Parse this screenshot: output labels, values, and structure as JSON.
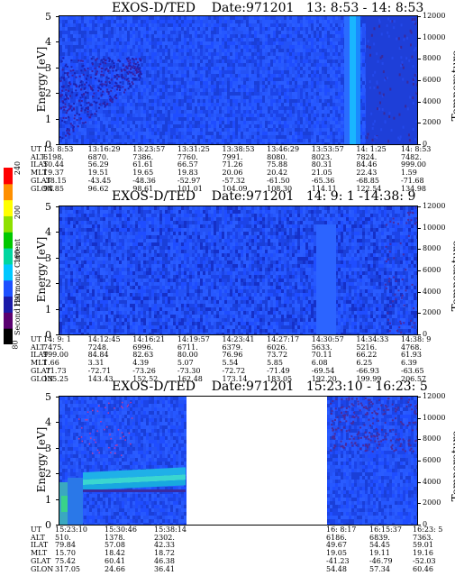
{
  "panels": [
    {
      "title_instrument": "EXOS-D/TED",
      "title_date": "Date:971201",
      "title_time": "13: 8:53 - 14: 8:53",
      "y_label": "Energy [eV]",
      "y2_label": "Temperature [K]",
      "y_ticks": [
        "0",
        "1",
        "2",
        "3",
        "4",
        "5"
      ],
      "y2_ticks": [
        "0",
        "2000",
        "4000",
        "6000",
        "8000",
        "10000",
        "12000"
      ],
      "table_rows": [
        "UT",
        "ALT",
        "ILAT",
        "MLT",
        "GLAT",
        "GLON"
      ],
      "table_cols": [
        [
          "13: 8:53",
          "6198.",
          "50.44",
          "19.37",
          "-38.15",
          "94.85"
        ],
        [
          "13:16:29",
          "6870.",
          "56.29",
          "19.51",
          "-43.45",
          "96.62"
        ],
        [
          "13:23:57",
          "7386.",
          "61.61",
          "19.65",
          "-48.36",
          "98.61"
        ],
        [
          "13:31:25",
          "7760.",
          "66.57",
          "19.83",
          "-52.97",
          "101.01"
        ],
        [
          "13:38:53",
          "7991.",
          "71.26",
          "20.06",
          "-57.32",
          "104.09"
        ],
        [
          "13:46:29",
          "8080.",
          "75.88",
          "20.42",
          "-61.50",
          "108.30"
        ],
        [
          "13:53:57",
          "8023.",
          "80.31",
          "21.05",
          "-65.36",
          "114.11"
        ],
        [
          "14: 1:25",
          "7824.",
          "84.46",
          "22.43",
          "-68.85",
          "122.54"
        ],
        [
          "14: 8:53",
          "7482.",
          "999.00",
          "1.59",
          "-71.68",
          "134.98"
        ]
      ]
    },
    {
      "title_instrument": "EXOS-D/TED",
      "title_date": "Date:971201",
      "title_time": "14: 9: 1 -14:38: 9",
      "y_label": "Energy [eV]",
      "y2_label": "Temperature [K]",
      "y_ticks": [
        "0",
        "1",
        "2",
        "3",
        "4",
        "5"
      ],
      "y2_ticks": [
        "0",
        "2000",
        "4000",
        "6000",
        "8000",
        "10000",
        "12000"
      ],
      "table_rows": [
        "UT",
        "ALT",
        "ILAT",
        "MLT",
        "GLAT",
        "GLON"
      ],
      "table_cols": [
        [
          "14: 9: 1",
          "7475.",
          "999.00",
          "1.66",
          "-71.73",
          "135.25"
        ],
        [
          "14:12:45",
          "7248.",
          "84.84",
          "3.31",
          "-72.71",
          "143.43"
        ],
        [
          "14:16:21",
          "6996.",
          "82.63",
          "4.39",
          "-73.26",
          "152.52"
        ],
        [
          "14:19:57",
          "6711.",
          "80.00",
          "5.07",
          "-73.30",
          "162.48"
        ],
        [
          "14:23:41",
          "6379.",
          "76.96",
          "5.54",
          "-72.72",
          "173.14"
        ],
        [
          "14:27:17",
          "6026.",
          "73.72",
          "5.85",
          "-71.49",
          "183.05"
        ],
        [
          "14:30:57",
          "5633.",
          "70.11",
          "6.08",
          "-69.54",
          "192.20"
        ],
        [
          "14:34:33",
          "5216.",
          "66.22",
          "6.25",
          "-66.93",
          "199.99"
        ],
        [
          "14:38: 9",
          "4768.",
          "61.93",
          "6.39",
          "-63.65",
          "206.57"
        ]
      ]
    },
    {
      "title_instrument": "EXOS-D/TED",
      "title_date": "Date:971201",
      "title_time": "15:23:10 - 16:23: 5",
      "y_label": "Energy [eV]",
      "y2_label": "Temperature [K]",
      "y_ticks": [
        "0",
        "1",
        "2",
        "3",
        "4",
        "5"
      ],
      "y2_ticks": [
        "0",
        "2000",
        "4000",
        "6000",
        "8000",
        "10000",
        "12000"
      ],
      "table_rows": [
        "UT",
        "ALT",
        "ILAT",
        "MLT",
        "GLAT",
        "GLON"
      ],
      "table_cols_left": [
        [
          "15:23:10",
          "510.",
          "79.84",
          "15.70",
          "75.42",
          "317.05"
        ],
        [
          "15:30:46",
          "1378.",
          "57.08",
          "18.42",
          "60.41",
          "24.66"
        ],
        [
          "15:38:14",
          "2302.",
          "42.33",
          "18.72",
          "46.38",
          "36.41"
        ]
      ],
      "table_cols_right": [
        [
          "16: 8:17",
          "6186.",
          "49.67",
          "19.05",
          "-41.23",
          "54.48"
        ],
        [
          "16:15:37",
          "6839.",
          "54.45",
          "19.11",
          "-46.79",
          "57.34"
        ],
        [
          "16:23: 5",
          "7363.",
          "59.01",
          "19.16",
          "-52.03",
          "60.46"
        ]
      ]
    }
  ],
  "colorbar": {
    "label": "Second Harmonic Current",
    "ticks": [
      "80",
      "120",
      "160",
      "200",
      "240"
    ],
    "colors": [
      "#000000",
      "#5a0070",
      "#1a1aa8",
      "#1e50ff",
      "#00c8ff",
      "#00d6a0",
      "#00c800",
      "#8ee000",
      "#ffff00",
      "#ff9000",
      "#ff0000"
    ]
  },
  "chart_data": [
    {
      "type": "heatmap",
      "title": "EXOS-D/TED  Date:971201  13: 8:53 - 14: 8:53",
      "xlabel": "UT",
      "ylabel": "Energy [eV]",
      "y2label": "Temperature [K]",
      "ylim": [
        0,
        5
      ],
      "y2lim": [
        0,
        12000
      ],
      "x": [
        "13: 8:53",
        "13:16:29",
        "13:23:57",
        "13:31:25",
        "13:38:53",
        "13:46:29",
        "13:53:57",
        "14: 1:25",
        "14: 8:53"
      ]
    },
    {
      "type": "heatmap",
      "title": "EXOS-D/TED  Date:971201  14: 9: 1 -14:38: 9",
      "xlabel": "UT",
      "ylabel": "Energy [eV]",
      "y2label": "Temperature [K]",
      "ylim": [
        0,
        5
      ],
      "y2lim": [
        0,
        12000
      ],
      "x": [
        "14: 9: 1",
        "14:12:45",
        "14:16:21",
        "14:19:57",
        "14:23:41",
        "14:27:17",
        "14:30:57",
        "14:34:33",
        "14:38: 9"
      ]
    },
    {
      "type": "heatmap",
      "title": "EXOS-D/TED  Date:971201  15:23:10 - 16:23: 5",
      "xlabel": "UT",
      "ylabel": "Energy [eV]",
      "y2label": "Temperature [K]",
      "ylim": [
        0,
        5
      ],
      "y2lim": [
        0,
        12000
      ],
      "x": [
        "15:23:10",
        "15:30:46",
        "15:38:14",
        "16: 8:17",
        "16:15:37",
        "16:23: 5"
      ]
    }
  ]
}
